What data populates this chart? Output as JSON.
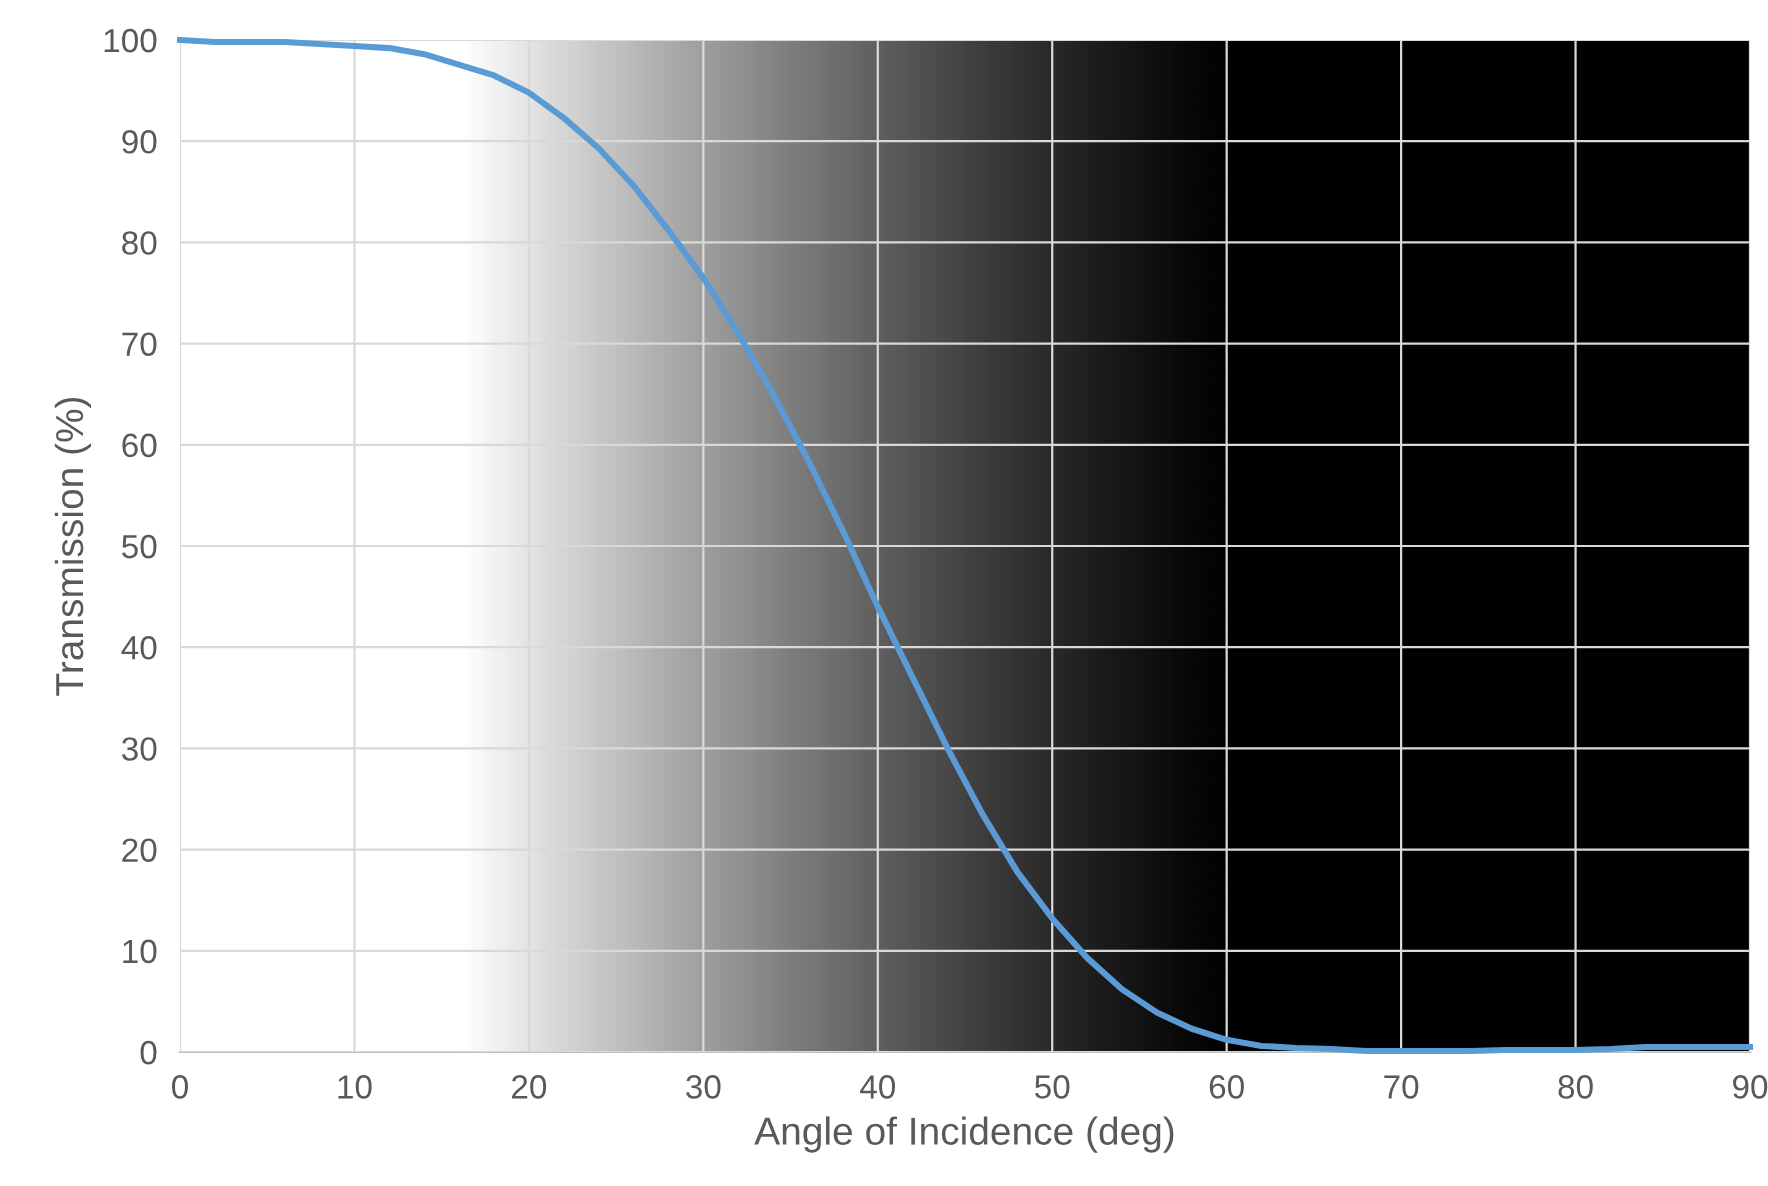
{
  "chart_data": {
    "type": "line",
    "xlabel": "Angle of Incidence (deg)",
    "ylabel": "Transmission (%)",
    "x": [
      0,
      2,
      6,
      10,
      12,
      14,
      18,
      20,
      22,
      24,
      26,
      28,
      30,
      32,
      34,
      36,
      38,
      40,
      42,
      44,
      46,
      48,
      50,
      52,
      54,
      56,
      58,
      60,
      62,
      64,
      66,
      68,
      70,
      72,
      74,
      76,
      78,
      80,
      82,
      84,
      86,
      88,
      90
    ],
    "series": [
      {
        "color": "#5b9bd5",
        "values": [
          100,
          99.8,
          99.8,
          99.4,
          99.2,
          98.6,
          96.5,
          94.8,
          92.3,
          89.3,
          85.6,
          81.2,
          76.5,
          71,
          65,
          58.5,
          51.5,
          44,
          37,
          30,
          23.5,
          17.8,
          13.2,
          9.3,
          6.2,
          3.9,
          2.3,
          1.2,
          0.6,
          0.4,
          0.3,
          0.1,
          0.1,
          0.1,
          0.1,
          0.2,
          0.2,
          0.2,
          0.3,
          0.5,
          0.5,
          0.5,
          0.5
        ]
      }
    ],
    "xlim": [
      0,
      90
    ],
    "ylim": [
      0,
      100
    ],
    "xticks": [
      0,
      10,
      20,
      30,
      40,
      50,
      60,
      70,
      80,
      90
    ],
    "yticks": [
      0,
      10,
      20,
      30,
      40,
      50,
      60,
      70,
      80,
      90,
      100
    ],
    "grid": true,
    "marker": "none",
    "line_style": "solid",
    "legend": false
  }
}
